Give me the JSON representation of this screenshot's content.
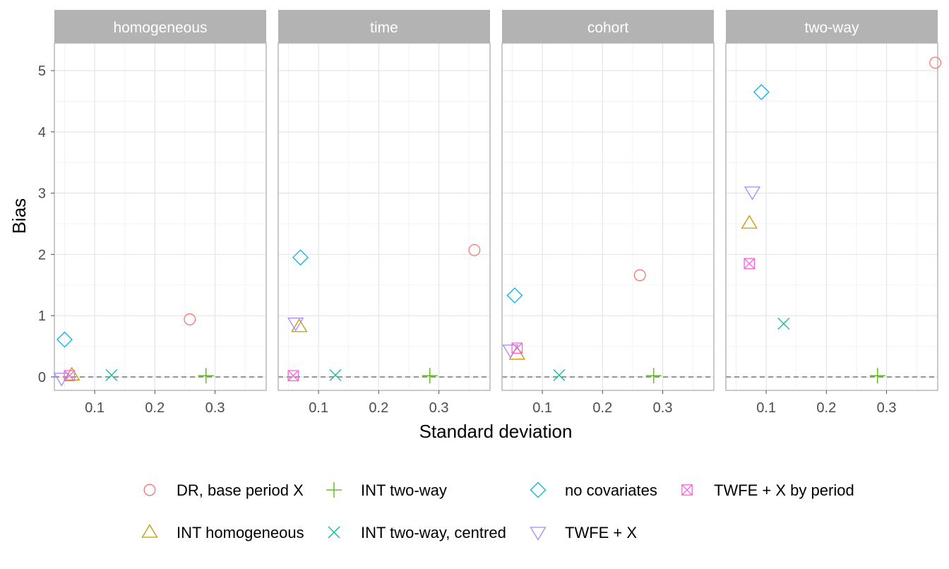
{
  "chart_data": {
    "type": "scatter",
    "xlabel": "Standard deviation",
    "ylabel": "Bias",
    "xlim": [
      0.033,
      0.385
    ],
    "ylim": [
      -0.22,
      5.45
    ],
    "x_ticks": [
      0.1,
      0.2,
      0.3
    ],
    "x_tick_labels": [
      "0.1",
      "0.2",
      "0.3"
    ],
    "y_ticks": [
      0,
      1,
      2,
      3,
      4,
      5
    ],
    "y_tick_labels": [
      "0",
      "1",
      "2",
      "3",
      "4",
      "5"
    ],
    "reference_line": {
      "y": 0,
      "style": "dashed"
    },
    "grid": true,
    "legend_position": "bottom",
    "facets": [
      "homogeneous",
      "time",
      "cohort",
      "two-way"
    ],
    "series": [
      {
        "name": "DR, base period X",
        "shape": "circle",
        "color": "#F8766D",
        "points": [
          [
            0.258,
            0.94
          ],
          [
            0.359,
            2.07
          ],
          [
            0.262,
            1.66
          ],
          [
            0.381,
            5.13
          ]
        ]
      },
      {
        "name": "INT homogeneous",
        "shape": "triangle-up",
        "color": "#C49A00",
        "points": [
          [
            0.062,
            0.03
          ],
          [
            0.068,
            0.82
          ],
          [
            0.058,
            0.37
          ],
          [
            0.072,
            2.51
          ]
        ]
      },
      {
        "name": "INT two-way",
        "shape": "plus",
        "color": "#53B400",
        "points": [
          [
            0.285,
            0.02
          ],
          [
            0.285,
            0.02
          ],
          [
            0.285,
            0.02
          ],
          [
            0.285,
            0.02
          ]
        ]
      },
      {
        "name": "INT two-way, centred",
        "shape": "cross",
        "color": "#00C094",
        "points": [
          [
            0.128,
            0.03
          ],
          [
            0.128,
            0.03
          ],
          [
            0.128,
            0.03
          ],
          [
            0.129,
            0.87
          ]
        ]
      },
      {
        "name": "no covariates",
        "shape": "diamond",
        "color": "#00B6EB",
        "points": [
          [
            0.05,
            0.61
          ],
          [
            0.07,
            1.95
          ],
          [
            0.054,
            1.33
          ],
          [
            0.092,
            4.65
          ]
        ]
      },
      {
        "name": "TWFE + X",
        "shape": "triangle-down",
        "color": "#A58AFF",
        "points": [
          [
            0.045,
            -0.02
          ],
          [
            0.062,
            0.88
          ],
          [
            0.047,
            0.44
          ],
          [
            0.077,
            3.02
          ]
        ]
      },
      {
        "name": "TWFE + X by period",
        "shape": "square-x",
        "color": "#FB61D7",
        "points": [
          [
            0.058,
            0.02
          ],
          [
            0.058,
            0.02
          ],
          [
            0.058,
            0.47
          ],
          [
            0.072,
            1.85
          ]
        ]
      }
    ]
  }
}
